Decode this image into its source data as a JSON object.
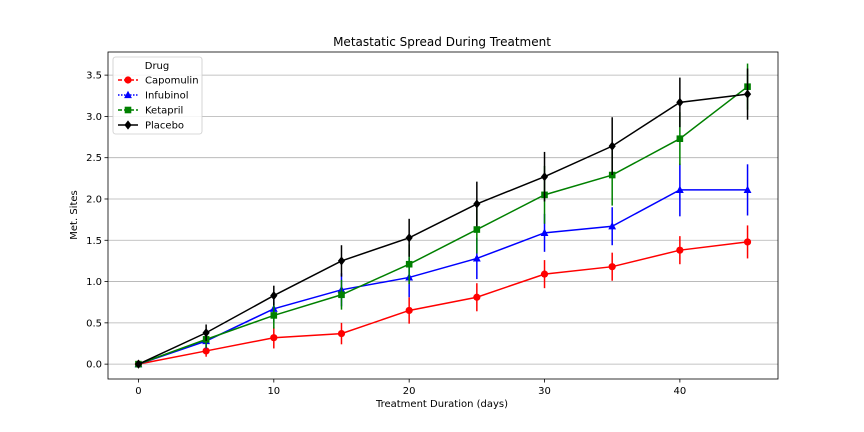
{
  "chart_data": {
    "type": "line",
    "title": "Metastatic Spread During Treatment",
    "xlabel": "Treatment Duration (days)",
    "ylabel": "Met. Sites",
    "x": [
      0,
      5,
      10,
      15,
      20,
      25,
      30,
      35,
      40,
      45
    ],
    "xlim": [
      -2.25,
      47.25
    ],
    "ylim": [
      -0.18,
      3.78
    ],
    "xticks": [
      0,
      10,
      20,
      30,
      40
    ],
    "yticks": [
      0.0,
      0.5,
      1.0,
      1.5,
      2.0,
      2.5,
      3.0,
      3.5
    ],
    "ytick_labels": [
      "0.0",
      "0.5",
      "1.0",
      "1.5",
      "2.0",
      "2.5",
      "3.0",
      "3.5"
    ],
    "grid": "horizontal",
    "legend": {
      "title": "Drug",
      "placement": "top-left"
    },
    "series": [
      {
        "name": "Capomulin",
        "color": "#ff0000",
        "marker": "circle",
        "linestyle": "dashed",
        "values": [
          0.0,
          0.16,
          0.32,
          0.37,
          0.65,
          0.81,
          1.09,
          1.18,
          1.38,
          1.48
        ],
        "errors": [
          0.0,
          0.07,
          0.13,
          0.13,
          0.16,
          0.17,
          0.17,
          0.17,
          0.17,
          0.2
        ]
      },
      {
        "name": "Infubinol",
        "color": "#0000ff",
        "marker": "triangle",
        "linestyle": "dotted",
        "values": [
          0.0,
          0.28,
          0.67,
          0.9,
          1.05,
          1.28,
          1.59,
          1.67,
          2.11,
          2.11
        ],
        "errors": [
          0.0,
          0.09,
          0.16,
          0.2,
          0.24,
          0.25,
          0.23,
          0.23,
          0.32,
          0.31
        ]
      },
      {
        "name": "Ketapril",
        "color": "#008000",
        "marker": "square",
        "linestyle": "dashed",
        "values": [
          0.0,
          0.3,
          0.59,
          0.84,
          1.21,
          1.63,
          2.05,
          2.29,
          2.73,
          3.36
        ],
        "errors": [
          0.0,
          0.1,
          0.16,
          0.18,
          0.24,
          0.29,
          0.35,
          0.37,
          0.32,
          0.28
        ]
      },
      {
        "name": "Placebo",
        "color": "#000000",
        "marker": "diamond",
        "linestyle": "solid",
        "values": [
          0.0,
          0.38,
          0.83,
          1.25,
          1.53,
          1.94,
          2.27,
          2.64,
          3.17,
          3.27
        ],
        "errors": [
          0.0,
          0.1,
          0.12,
          0.19,
          0.23,
          0.27,
          0.3,
          0.35,
          0.3,
          0.31
        ]
      }
    ]
  }
}
